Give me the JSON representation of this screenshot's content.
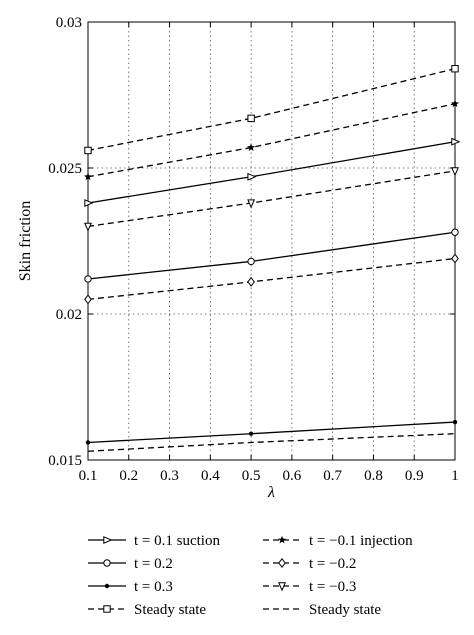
{
  "chart_data": {
    "type": "line",
    "title": "",
    "xlabel": "λ",
    "ylabel": "Skin friction",
    "xlim": [
      0.1,
      1
    ],
    "ylim": [
      0.015,
      0.03
    ],
    "x_ticks": [
      "0.1",
      "0.2",
      "0.3",
      "0.4",
      "0.5",
      "0.6",
      "0.7",
      "0.8",
      "0.9",
      "1"
    ],
    "y_ticks": [
      "0.015",
      "0.02",
      "0.025",
      "0.03"
    ],
    "grid": true,
    "legend_placement": "below",
    "x": [
      0.1,
      0.5,
      1
    ],
    "series": [
      {
        "name": "t = 0.1 suction",
        "values": [
          0.0238,
          0.0247,
          0.0259
        ],
        "line": "solid",
        "marker": "triangle-right"
      },
      {
        "name": "t = 0.2",
        "values": [
          0.0212,
          0.0218,
          0.0228
        ],
        "line": "solid",
        "marker": "circle"
      },
      {
        "name": "t = 0.3",
        "values": [
          0.0156,
          0.0159,
          0.0163
        ],
        "line": "solid",
        "marker": "dot"
      },
      {
        "name": "Steady state",
        "values": [
          0.0256,
          0.0267,
          0.0284
        ],
        "line": "dashed",
        "marker": "square"
      },
      {
        "name": "t = −0.1 injection",
        "values": [
          0.0247,
          0.0257,
          0.0272
        ],
        "line": "dashed",
        "marker": "star"
      },
      {
        "name": "t = −0.2",
        "values": [
          0.0205,
          0.0211,
          0.0219
        ],
        "line": "dashed",
        "marker": "diamond"
      },
      {
        "name": "t = −0.3",
        "values": [
          0.023,
          0.0238,
          0.0249
        ],
        "line": "dashed",
        "marker": "triangle-down"
      },
      {
        "name": "Steady state",
        "values": [
          0.0153,
          0.0156,
          0.0159
        ],
        "line": "dashed",
        "marker": "none"
      }
    ]
  }
}
